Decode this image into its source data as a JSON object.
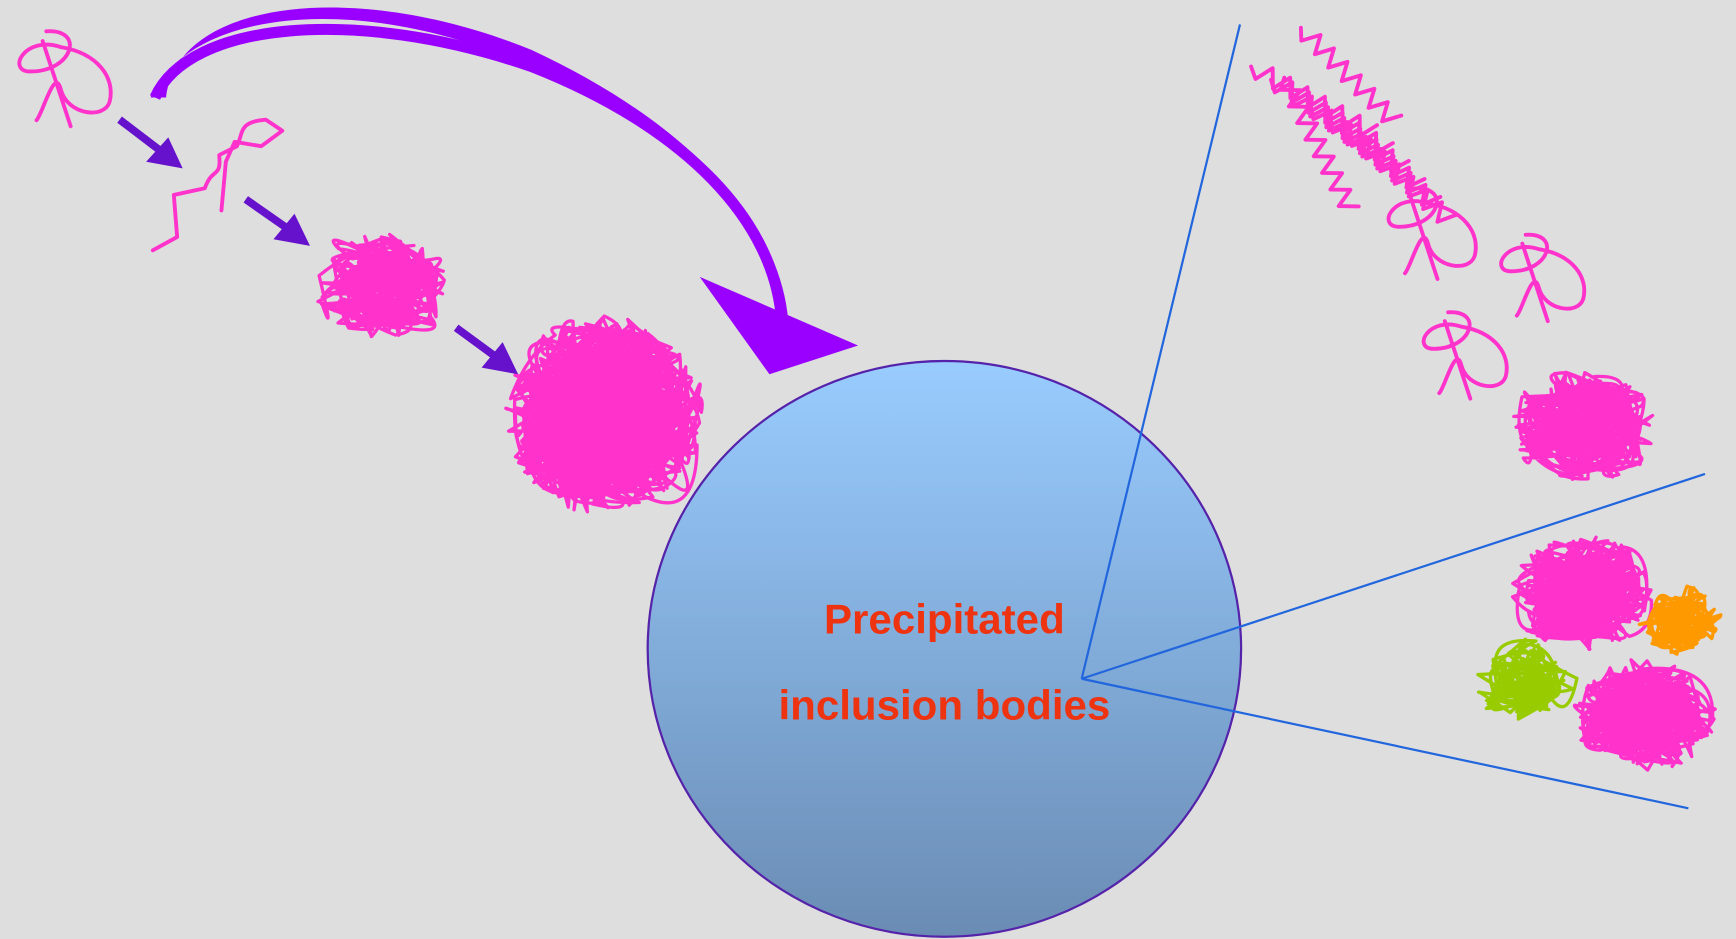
{
  "label": {
    "lines": [
      "Precipitated",
      "inclusion bodies"
    ]
  }
}
